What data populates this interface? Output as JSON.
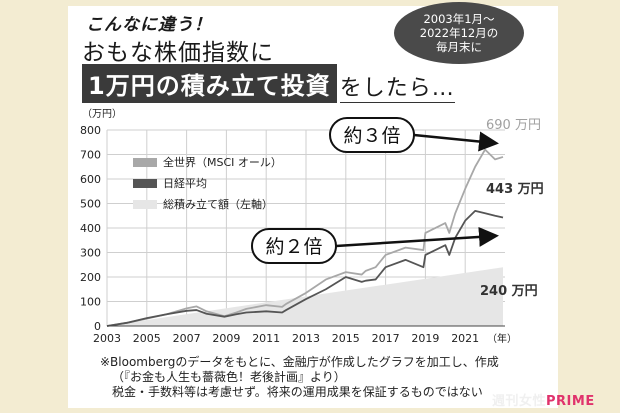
{
  "header": {
    "kicker": "こんなに違う！",
    "line1": "おもな株価指数に",
    "line2_box": "1万円の積み立て投資",
    "line2_rest": "をしたら…"
  },
  "bubble": {
    "line1": "2003年1月〜",
    "line2": "2022年12月の",
    "line3": "毎月末に"
  },
  "footnote": {
    "line1": "※Bloombergのデータをもとに、金融庁が作成したグラフを加工し、作成",
    "line2": "（『お金も人生も薔薇色！老後計画』より）",
    "line3": "税金・手数料等は考慮せず。将来の運用成果を保証するものではない"
  },
  "brand": {
    "part1": "週刊女性",
    "part2": "PRIME"
  },
  "chart_data": {
    "type": "line",
    "y_unit_label": "（万円）",
    "x_unit_label": "（年）",
    "xlim": [
      2003,
      2023
    ],
    "ylim": [
      0,
      800
    ],
    "x_ticks": [
      "2003",
      "2005",
      "2007",
      "2009",
      "2011",
      "2013",
      "2015",
      "2017",
      "2019",
      "2021"
    ],
    "y_ticks": [
      "0",
      "100",
      "200",
      "300",
      "400",
      "500",
      "600",
      "700",
      "800"
    ],
    "grid": true,
    "legend_position": "top-left",
    "series": [
      {
        "name": "全世界（MSCI オール）",
        "color": "#a8a8a8",
        "x": [
          2003,
          2004,
          2005,
          2006,
          2007,
          2007.5,
          2008,
          2008.9,
          2009.5,
          2010,
          2011,
          2011.8,
          2012,
          2013,
          2014,
          2015,
          2015.8,
          2016,
          2016.5,
          2017,
          2018,
          2018.9,
          2019,
          2020,
          2020.2,
          2020.5,
          2021,
          2021.5,
          2022,
          2022.5,
          2022.9
        ],
        "y": [
          0,
          13,
          30,
          48,
          72,
          80,
          60,
          40,
          55,
          70,
          85,
          78,
          90,
          135,
          190,
          220,
          210,
          225,
          240,
          290,
          320,
          310,
          380,
          420,
          380,
          460,
          560,
          650,
          720,
          680,
          690
        ]
      },
      {
        "name": "日経平均",
        "color": "#555555",
        "x": [
          2003,
          2004,
          2005,
          2006,
          2007,
          2007.5,
          2008,
          2008.9,
          2009.5,
          2010,
          2011,
          2011.8,
          2012,
          2013,
          2014,
          2015,
          2015.8,
          2016,
          2016.5,
          2017,
          2018,
          2018.9,
          2019,
          2020,
          2020.2,
          2020.5,
          2021,
          2021.5,
          2022,
          2022.5,
          2022.9
        ],
        "y": [
          0,
          13,
          32,
          48,
          62,
          65,
          50,
          38,
          48,
          55,
          60,
          55,
          65,
          110,
          150,
          200,
          180,
          185,
          190,
          240,
          270,
          240,
          290,
          330,
          290,
          360,
          430,
          470,
          460,
          450,
          443
        ]
      },
      {
        "name": "総積み立て額（左軸）",
        "color": "#e6e6e6",
        "fill": true,
        "x": [
          2003,
          2022.9
        ],
        "y": [
          0,
          240
        ]
      }
    ],
    "annotations": [
      {
        "text": "約３倍"
      },
      {
        "text": "約２倍"
      },
      {
        "text": "690 万円",
        "x": 2022.9,
        "y": 690
      },
      {
        "text": "443 万円",
        "x": 2022.9,
        "y": 443
      },
      {
        "text": "240 万円",
        "x": 2022.9,
        "y": 240
      }
    ]
  }
}
